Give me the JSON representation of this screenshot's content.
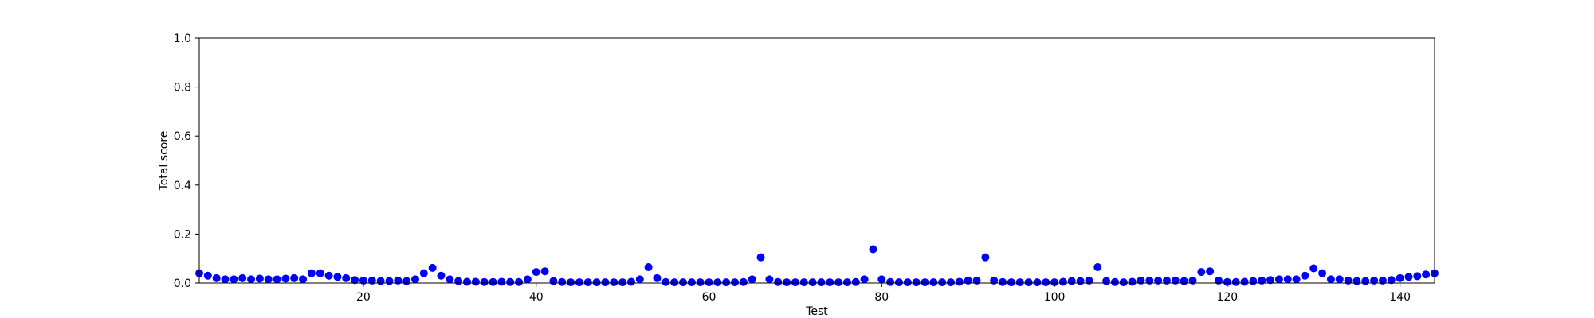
{
  "chart_data": {
    "type": "scatter",
    "title": "",
    "xlabel": "Test",
    "ylabel": "Total score",
    "xlim": [
      1,
      144
    ],
    "ylim": [
      0,
      1.0
    ],
    "x_ticks": [
      20,
      40,
      60,
      80,
      100,
      120,
      140
    ],
    "y_ticks": [
      0.0,
      0.2,
      0.4,
      0.6,
      0.8,
      1.0
    ],
    "grid": false,
    "marker_color": "#0000ff",
    "series": [
      {
        "x": [
          1,
          2,
          3,
          4,
          5,
          6,
          7,
          8,
          9,
          10,
          11,
          12,
          13,
          14,
          15,
          16,
          17,
          18,
          19,
          20,
          21,
          22,
          23,
          24,
          25,
          26,
          27,
          28,
          29,
          30,
          31,
          32,
          33,
          34,
          35,
          36,
          37,
          38,
          39,
          40,
          41,
          42,
          43,
          44,
          45,
          46,
          47,
          48,
          49,
          50,
          51,
          52,
          53,
          54,
          55,
          56,
          57,
          58,
          59,
          60,
          61,
          62,
          63,
          64,
          65,
          66,
          67,
          68,
          69,
          70,
          71,
          72,
          73,
          74,
          75,
          76,
          77,
          78,
          79,
          80,
          81,
          82,
          83,
          84,
          85,
          86,
          87,
          88,
          89,
          90,
          91,
          92,
          93,
          94,
          95,
          96,
          97,
          98,
          99,
          100,
          101,
          102,
          103,
          104,
          105,
          106,
          107,
          108,
          109,
          110,
          111,
          112,
          113,
          114,
          115,
          116,
          117,
          118,
          119,
          120,
          121,
          122,
          123,
          124,
          125,
          126,
          127,
          128,
          129,
          130,
          131,
          132,
          133,
          134,
          135,
          136,
          137,
          138,
          139,
          140,
          141,
          142,
          143,
          144
        ],
        "y": [
          0.04,
          0.03,
          0.02,
          0.015,
          0.015,
          0.02,
          0.015,
          0.018,
          0.015,
          0.015,
          0.018,
          0.02,
          0.015,
          0.04,
          0.04,
          0.03,
          0.025,
          0.02,
          0.012,
          0.01,
          0.01,
          0.008,
          0.008,
          0.01,
          0.008,
          0.015,
          0.04,
          0.062,
          0.03,
          0.015,
          0.008,
          0.005,
          0.005,
          0.004,
          0.004,
          0.005,
          0.004,
          0.004,
          0.015,
          0.045,
          0.048,
          0.008,
          0.004,
          0.003,
          0.003,
          0.003,
          0.003,
          0.003,
          0.003,
          0.003,
          0.005,
          0.015,
          0.065,
          0.02,
          0.004,
          0.003,
          0.003,
          0.003,
          0.003,
          0.003,
          0.003,
          0.003,
          0.003,
          0.004,
          0.015,
          0.105,
          0.015,
          0.004,
          0.003,
          0.003,
          0.003,
          0.003,
          0.003,
          0.003,
          0.003,
          0.003,
          0.004,
          0.015,
          0.138,
          0.015,
          0.004,
          0.003,
          0.003,
          0.003,
          0.003,
          0.003,
          0.003,
          0.003,
          0.005,
          0.01,
          0.01,
          0.105,
          0.01,
          0.004,
          0.003,
          0.003,
          0.003,
          0.003,
          0.003,
          0.003,
          0.005,
          0.008,
          0.008,
          0.01,
          0.065,
          0.008,
          0.004,
          0.003,
          0.005,
          0.01,
          0.01,
          0.01,
          0.01,
          0.01,
          0.008,
          0.01,
          0.045,
          0.048,
          0.01,
          0.004,
          0.004,
          0.005,
          0.008,
          0.01,
          0.012,
          0.015,
          0.015,
          0.015,
          0.03,
          0.06,
          0.04,
          0.015,
          0.015,
          0.01,
          0.008,
          0.008,
          0.01,
          0.01,
          0.012,
          0.02,
          0.025,
          0.028,
          0.035,
          0.04
        ]
      }
    ]
  }
}
